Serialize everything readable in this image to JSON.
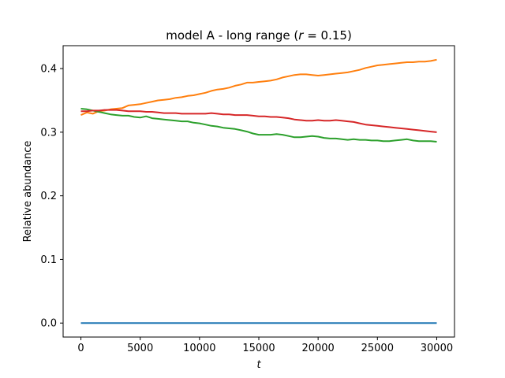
{
  "chart_data": {
    "type": "line",
    "title": {
      "prefix": "model A - long range (",
      "var": "r",
      "suffix": " = 0.15)"
    },
    "xlabel": "t",
    "ylabel": "Relative abundance",
    "xlim": [
      -1500,
      31500
    ],
    "ylim": [
      -0.022,
      0.436
    ],
    "xticks": [
      0,
      5000,
      10000,
      15000,
      20000,
      25000,
      30000
    ],
    "xtick_labels": [
      "0",
      "5000",
      "10000",
      "15000",
      "20000",
      "25000",
      "30000"
    ],
    "yticks": [
      0.0,
      0.1,
      0.2,
      0.3,
      0.4
    ],
    "ytick_labels": [
      "0.0",
      "0.1",
      "0.2",
      "0.3",
      "0.4"
    ],
    "grid": false,
    "series": [
      {
        "color": "#1f77b4",
        "x": [
          0,
          30000
        ],
        "y": [
          0.0,
          0.0
        ]
      },
      {
        "color": "#ff7f0e",
        "x": [
          0,
          500,
          1000,
          1500,
          2000,
          2500,
          3000,
          3500,
          4000,
          4500,
          5000,
          5500,
          6000,
          6500,
          7000,
          7500,
          8000,
          8500,
          9000,
          9500,
          10000,
          10500,
          11000,
          11500,
          12000,
          12500,
          13000,
          13500,
          14000,
          14500,
          15000,
          15500,
          16000,
          16500,
          17000,
          17500,
          18000,
          18500,
          19000,
          19500,
          20000,
          20500,
          21000,
          21500,
          22000,
          22500,
          23000,
          23500,
          24000,
          24500,
          25000,
          25500,
          26000,
          26500,
          27000,
          27500,
          28000,
          28500,
          29000,
          29500,
          30000
        ],
        "y": [
          0.327,
          0.331,
          0.329,
          0.333,
          0.334,
          0.336,
          0.337,
          0.338,
          0.342,
          0.343,
          0.344,
          0.346,
          0.348,
          0.35,
          0.351,
          0.352,
          0.354,
          0.355,
          0.357,
          0.358,
          0.36,
          0.362,
          0.365,
          0.367,
          0.368,
          0.37,
          0.373,
          0.375,
          0.378,
          0.378,
          0.379,
          0.38,
          0.381,
          0.383,
          0.386,
          0.388,
          0.39,
          0.391,
          0.391,
          0.39,
          0.389,
          0.39,
          0.391,
          0.392,
          0.393,
          0.394,
          0.396,
          0.398,
          0.401,
          0.403,
          0.405,
          0.406,
          0.407,
          0.408,
          0.409,
          0.41,
          0.41,
          0.411,
          0.411,
          0.412,
          0.414
        ]
      },
      {
        "color": "#2ca02c",
        "x": [
          0,
          500,
          1000,
          1500,
          2000,
          2500,
          3000,
          3500,
          4000,
          4500,
          5000,
          5500,
          6000,
          6500,
          7000,
          7500,
          8000,
          8500,
          9000,
          9500,
          10000,
          10500,
          11000,
          11500,
          12000,
          12500,
          13000,
          13500,
          14000,
          14500,
          15000,
          15500,
          16000,
          16500,
          17000,
          17500,
          18000,
          18500,
          19000,
          19500,
          20000,
          20500,
          21000,
          21500,
          22000,
          22500,
          23000,
          23500,
          24000,
          24500,
          25000,
          25500,
          26000,
          26500,
          27000,
          27500,
          28000,
          28500,
          29000,
          29500,
          30000
        ],
        "y": [
          0.337,
          0.336,
          0.334,
          0.332,
          0.33,
          0.328,
          0.327,
          0.326,
          0.326,
          0.324,
          0.323,
          0.325,
          0.322,
          0.321,
          0.32,
          0.319,
          0.318,
          0.317,
          0.317,
          0.315,
          0.314,
          0.312,
          0.31,
          0.309,
          0.307,
          0.306,
          0.305,
          0.303,
          0.301,
          0.298,
          0.296,
          0.296,
          0.296,
          0.297,
          0.296,
          0.294,
          0.292,
          0.292,
          0.293,
          0.294,
          0.293,
          0.291,
          0.29,
          0.29,
          0.289,
          0.288,
          0.289,
          0.288,
          0.288,
          0.287,
          0.287,
          0.286,
          0.286,
          0.287,
          0.288,
          0.289,
          0.287,
          0.286,
          0.286,
          0.286,
          0.285
        ]
      },
      {
        "color": "#d62728",
        "x": [
          0,
          500,
          1000,
          1500,
          2000,
          2500,
          3000,
          3500,
          4000,
          4500,
          5000,
          5500,
          6000,
          6500,
          7000,
          7500,
          8000,
          8500,
          9000,
          9500,
          10000,
          10500,
          11000,
          11500,
          12000,
          12500,
          13000,
          13500,
          14000,
          14500,
          15000,
          15500,
          16000,
          16500,
          17000,
          17500,
          18000,
          18500,
          19000,
          19500,
          20000,
          20500,
          21000,
          21500,
          22000,
          22500,
          23000,
          23500,
          24000,
          24500,
          25000,
          25500,
          26000,
          26500,
          27000,
          27500,
          28000,
          28500,
          29000,
          29500,
          30000
        ],
        "y": [
          0.333,
          0.333,
          0.334,
          0.334,
          0.335,
          0.335,
          0.335,
          0.334,
          0.333,
          0.333,
          0.333,
          0.332,
          0.332,
          0.331,
          0.33,
          0.33,
          0.33,
          0.329,
          0.329,
          0.329,
          0.329,
          0.329,
          0.33,
          0.329,
          0.328,
          0.328,
          0.327,
          0.327,
          0.327,
          0.326,
          0.325,
          0.325,
          0.324,
          0.324,
          0.323,
          0.322,
          0.32,
          0.319,
          0.318,
          0.318,
          0.319,
          0.318,
          0.318,
          0.319,
          0.318,
          0.317,
          0.316,
          0.314,
          0.312,
          0.311,
          0.31,
          0.309,
          0.308,
          0.307,
          0.306,
          0.305,
          0.304,
          0.303,
          0.302,
          0.301,
          0.3
        ]
      }
    ]
  }
}
